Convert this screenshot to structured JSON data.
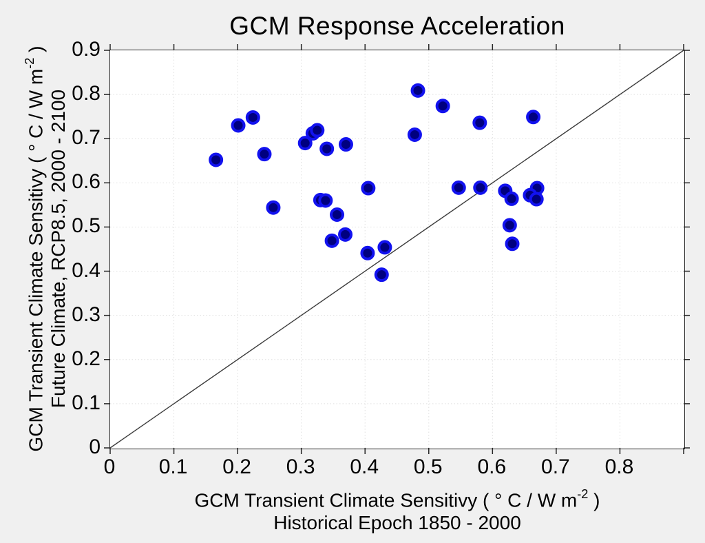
{
  "figure": {
    "background_color": "#f0f0f0",
    "plot_background_color": "#ffffff",
    "axis_color": "#262626",
    "grid_color": "#dfdfdf",
    "grid_on": true,
    "tick_direction": "out",
    "box_on": true
  },
  "chart_data": {
    "type": "scatter",
    "title": "GCM Response Acceleration",
    "x_axis": {
      "label_main": {
        "pre": "GCM Transient Climate Sensitivy ( ° C / W m",
        "sup": "-2",
        "post": " )"
      },
      "label_sub": "Historical Epoch 1850 - 2000",
      "range": [
        0,
        0.9
      ],
      "tick_step": 0.1,
      "ticks": [
        {
          "label": "0",
          "value": 0.0
        },
        {
          "label": "0.1",
          "value": 0.1
        },
        {
          "label": "0.2",
          "value": 0.2
        },
        {
          "label": "0.3",
          "value": 0.3
        },
        {
          "label": "0.4",
          "value": 0.4
        },
        {
          "label": "0.5",
          "value": 0.5
        },
        {
          "label": "0.6",
          "value": 0.6
        },
        {
          "label": "0.7",
          "value": 0.7
        },
        {
          "label": "0.8",
          "value": 0.8
        }
      ]
    },
    "y_axis": {
      "label_main": {
        "pre": "GCM Transient Climate Sensitivy ( ° C / W m",
        "sup": "-2",
        "post": " )"
      },
      "label_sub": "Future Climate, RCP8.5, 2000 - 2100",
      "range": [
        0,
        0.9
      ],
      "tick_step": 0.1,
      "ticks": [
        {
          "label": "0",
          "value": 0.0
        },
        {
          "label": "0.1",
          "value": 0.1
        },
        {
          "label": "0.2",
          "value": 0.2
        },
        {
          "label": "0.3",
          "value": 0.3
        },
        {
          "label": "0.4",
          "value": 0.4
        },
        {
          "label": "0.5",
          "value": 0.5
        },
        {
          "label": "0.6",
          "value": 0.6
        },
        {
          "label": "0.7",
          "value": 0.7
        },
        {
          "label": "0.8",
          "value": 0.8
        },
        {
          "label": "0.9",
          "value": 0.9
        }
      ]
    },
    "reference_line": {
      "from": [
        0,
        0
      ],
      "to": [
        0.9,
        0.9
      ],
      "color": "#3c3c3c",
      "width": 1.4
    },
    "marker": {
      "shape": "circle",
      "face_color": "#00007f",
      "edge_color": "#1212ef",
      "radius": 8.5,
      "edge_width": 4
    },
    "points": [
      [
        0.166,
        0.652
      ],
      [
        0.201,
        0.73
      ],
      [
        0.224,
        0.748
      ],
      [
        0.242,
        0.665
      ],
      [
        0.256,
        0.544
      ],
      [
        0.306,
        0.69
      ],
      [
        0.318,
        0.712
      ],
      [
        0.325,
        0.719
      ],
      [
        0.34,
        0.677
      ],
      [
        0.37,
        0.687
      ],
      [
        0.33,
        0.561
      ],
      [
        0.338,
        0.56
      ],
      [
        0.356,
        0.528
      ],
      [
        0.348,
        0.469
      ],
      [
        0.369,
        0.483
      ],
      [
        0.404,
        0.441
      ],
      [
        0.431,
        0.454
      ],
      [
        0.426,
        0.392
      ],
      [
        0.405,
        0.588
      ],
      [
        0.478,
        0.709
      ],
      [
        0.483,
        0.809
      ],
      [
        0.522,
        0.774
      ],
      [
        0.547,
        0.589
      ],
      [
        0.58,
        0.736
      ],
      [
        0.581,
        0.589
      ],
      [
        0.62,
        0.582
      ],
      [
        0.63,
        0.564
      ],
      [
        0.627,
        0.504
      ],
      [
        0.631,
        0.462
      ],
      [
        0.664,
        0.749
      ],
      [
        0.67,
        0.588
      ],
      [
        0.659,
        0.572
      ],
      [
        0.669,
        0.563
      ]
    ]
  }
}
